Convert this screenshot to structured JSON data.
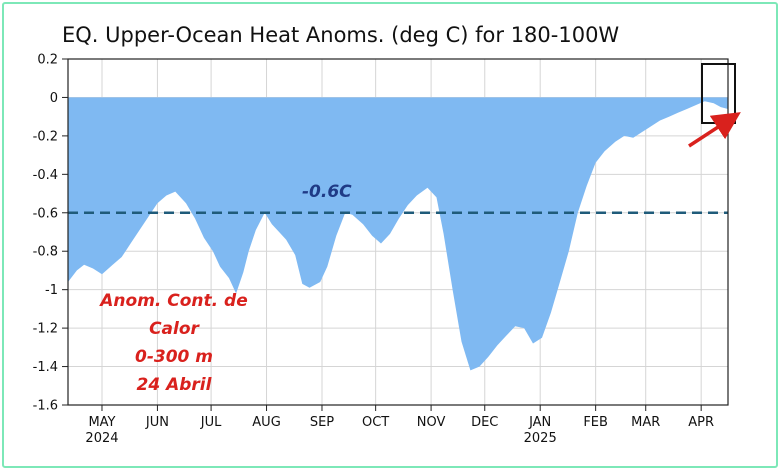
{
  "chart_data": {
    "type": "area",
    "title": "EQ. Upper-Ocean Heat Anoms. (deg C) for 180-100W",
    "xlabel": "",
    "ylabel": "",
    "ylim": [
      -1.6,
      0.2
    ],
    "xlim": [
      "2024-04-26",
      "2025-04-30"
    ],
    "yticks": [
      0.2,
      0,
      -0.2,
      -0.4,
      -0.6,
      -0.8,
      -1,
      -1.2,
      -1.4,
      -1.6
    ],
    "ytick_labels": [
      "0.2",
      "0",
      "-0.2",
      "-0.4",
      "-0.6",
      "-0.8",
      "-1",
      "-1.2",
      "-1.4",
      "-1.6"
    ],
    "xticks": [
      {
        "label": "MAY",
        "year": "2024"
      },
      {
        "label": "JUN",
        "year": ""
      },
      {
        "label": "JUL",
        "year": ""
      },
      {
        "label": "AUG",
        "year": ""
      },
      {
        "label": "SEP",
        "year": ""
      },
      {
        "label": "OCT",
        "year": ""
      },
      {
        "label": "NOV",
        "year": ""
      },
      {
        "label": "DEC",
        "year": ""
      },
      {
        "label": "JAN",
        "year": "2025"
      },
      {
        "label": "FEB",
        "year": ""
      },
      {
        "label": "MAR",
        "year": ""
      },
      {
        "label": "APR",
        "year": ""
      }
    ],
    "grid": {
      "x": true,
      "y": true
    },
    "fill_color": "#7fb9f2",
    "x": [
      "2024-04-26",
      "2024-05-01",
      "2024-05-05",
      "2024-05-10",
      "2024-05-15",
      "2024-05-21",
      "2024-05-26",
      "2024-05-31",
      "2024-06-05",
      "2024-06-10",
      "2024-06-15",
      "2024-06-20",
      "2024-06-25",
      "2024-07-01",
      "2024-07-06",
      "2024-07-11",
      "2024-07-16",
      "2024-07-20",
      "2024-07-25",
      "2024-07-29",
      "2024-08-02",
      "2024-08-05",
      "2024-08-09",
      "2024-08-14",
      "2024-08-18",
      "2024-08-22",
      "2024-08-26",
      "2024-08-31",
      "2024-09-04",
      "2024-09-08",
      "2024-09-14",
      "2024-09-18",
      "2024-09-23",
      "2024-09-28",
      "2024-10-02",
      "2024-10-08",
      "2024-10-13",
      "2024-10-18",
      "2024-10-23",
      "2024-10-28",
      "2024-11-02",
      "2024-11-07",
      "2024-11-13",
      "2024-11-18",
      "2024-11-22",
      "2024-11-27",
      "2024-12-02",
      "2024-12-07",
      "2024-12-12",
      "2024-12-17",
      "2024-12-22",
      "2024-12-27",
      "2025-01-01",
      "2025-01-06",
      "2025-01-11",
      "2025-01-16",
      "2025-01-21",
      "2025-01-26",
      "2025-01-31",
      "2025-02-05",
      "2025-02-10",
      "2025-02-15",
      "2025-02-20",
      "2025-02-26",
      "2025-03-03",
      "2025-03-08",
      "2025-03-13",
      "2025-03-18",
      "2025-03-23",
      "2025-03-28",
      "2025-04-02",
      "2025-04-07",
      "2025-04-12",
      "2025-04-17",
      "2025-04-22",
      "2025-04-26",
      "2025-04-30"
    ],
    "y": [
      -0.96,
      -0.9,
      -0.87,
      -0.89,
      -0.92,
      -0.87,
      -0.83,
      -0.76,
      -0.69,
      -0.62,
      -0.55,
      -0.51,
      -0.49,
      -0.55,
      -0.63,
      -0.73,
      -0.8,
      -0.88,
      -0.94,
      -1.02,
      -0.91,
      -0.8,
      -0.69,
      -0.6,
      -0.66,
      -0.7,
      -0.74,
      -0.82,
      -0.97,
      -0.99,
      -0.96,
      -0.88,
      -0.72,
      -0.6,
      -0.61,
      -0.66,
      -0.72,
      -0.76,
      -0.71,
      -0.63,
      -0.56,
      -0.51,
      -0.47,
      -0.52,
      -0.71,
      -1.0,
      -1.27,
      -1.42,
      -1.4,
      -1.35,
      -1.29,
      -1.24,
      -1.19,
      -1.2,
      -1.28,
      -1.25,
      -1.12,
      -0.96,
      -0.8,
      -0.6,
      -0.46,
      -0.34,
      -0.28,
      -0.23,
      -0.2,
      -0.21,
      -0.18,
      -0.15,
      -0.12,
      -0.1,
      -0.08,
      -0.06,
      -0.04,
      -0.02,
      -0.03,
      -0.05,
      -0.06
    ],
    "reference_line": {
      "y": -0.6,
      "label": "-0.6C",
      "color": "#1f5b7a"
    },
    "annotations": {
      "text_lines": [
        "Anom. Cont. de",
        "Calor",
        "0-300 m",
        "24 Abril"
      ],
      "text_color": "#d9211d",
      "highlight_box_color": "#111111",
      "arrow_color": "#d9211d"
    }
  }
}
